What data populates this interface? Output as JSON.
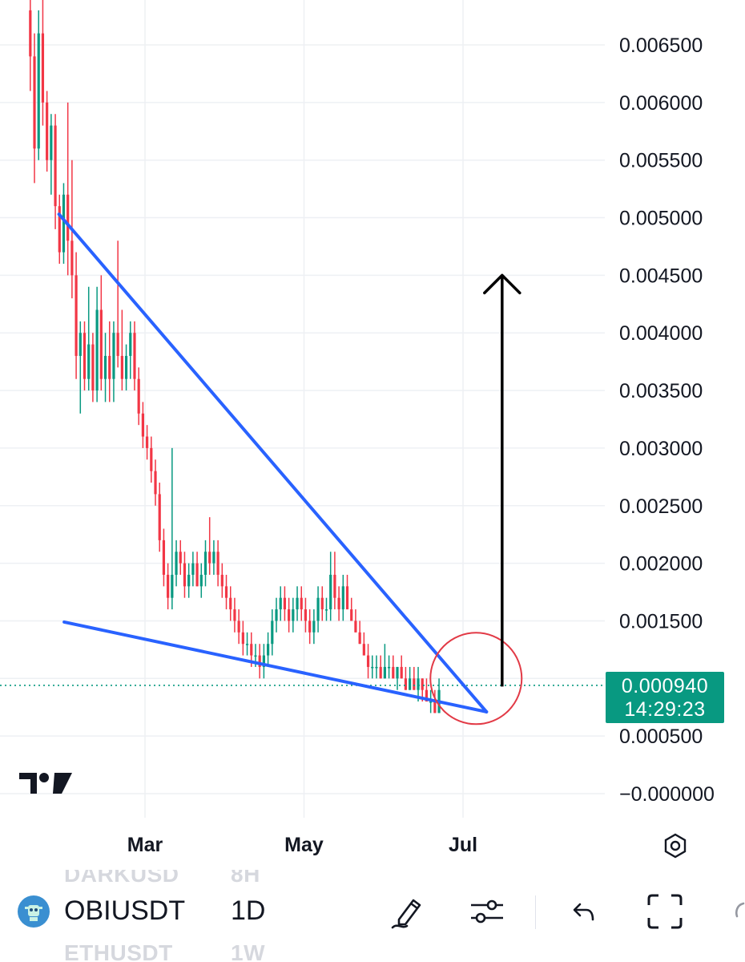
{
  "chart_data": {
    "type": "candlestick",
    "symbol": "OBIUSDT",
    "interval": "1D",
    "y_axis": {
      "ticks": [
        "0.006500",
        "0.006000",
        "0.005500",
        "0.005000",
        "0.004500",
        "0.004000",
        "0.003500",
        "0.003000",
        "0.002500",
        "0.002000",
        "0.001500",
        "0.000500",
        "−0.000000"
      ],
      "tick_values": [
        0.0065,
        0.006,
        0.0055,
        0.005,
        0.0045,
        0.004,
        0.0035,
        0.003,
        0.0025,
        0.002,
        0.0015,
        0.0005,
        0.0
      ],
      "range": [
        -0.0002,
        0.0069
      ]
    },
    "x_axis": {
      "ticks": [
        "Mar",
        "May",
        "Jul"
      ]
    },
    "grid": true,
    "last_price": "0.000940",
    "countdown": "14:29:23",
    "last_price_value": 0.00094,
    "up_color": "#089981",
    "down_color": "#f23645",
    "trendline_color": "#2962ff",
    "annotations": [
      {
        "type": "upper-trendline",
        "from": {
          "date": "Jan 27",
          "price": 0.00503
        },
        "to": {
          "date": "Jul 10",
          "price": 0.00071
        }
      },
      {
        "type": "lower-trendline",
        "from": {
          "date": "Jan 29",
          "price": 0.00149
        },
        "to": {
          "date": "Jul 10",
          "price": 0.00071
        }
      },
      {
        "type": "circle",
        "center": {
          "date": "Jul 06",
          "price": 0.001
        },
        "color": "#e23a46"
      },
      {
        "type": "arrow-up",
        "date": "Jul 16",
        "from": 0.00093,
        "to": 0.0045,
        "color": "#000000"
      }
    ],
    "candles_ohlc": [
      [
        0.0068,
        0.007,
        0.0061,
        0.0064
      ],
      [
        0.0064,
        0.0066,
        0.0053,
        0.0056
      ],
      [
        0.0056,
        0.0068,
        0.0055,
        0.0066
      ],
      [
        0.0066,
        0.007,
        0.0058,
        0.006
      ],
      [
        0.006,
        0.0061,
        0.0054,
        0.0055
      ],
      [
        0.0055,
        0.0059,
        0.0052,
        0.0058
      ],
      [
        0.0058,
        0.0059,
        0.0049,
        0.0051
      ],
      [
        0.0051,
        0.0052,
        0.0046,
        0.0047
      ],
      [
        0.0047,
        0.0053,
        0.0046,
        0.0052
      ],
      [
        0.0052,
        0.006,
        0.0045,
        0.0048
      ],
      [
        0.0048,
        0.0055,
        0.0043,
        0.0045
      ],
      [
        0.0045,
        0.0047,
        0.0036,
        0.0038
      ],
      [
        0.0038,
        0.0041,
        0.0033,
        0.004
      ],
      [
        0.004,
        0.0041,
        0.0035,
        0.0036
      ],
      [
        0.0036,
        0.0044,
        0.0035,
        0.0039
      ],
      [
        0.0039,
        0.004,
        0.0034,
        0.0035
      ],
      [
        0.0035,
        0.0044,
        0.0034,
        0.0042
      ],
      [
        0.0042,
        0.0045,
        0.0035,
        0.0036
      ],
      [
        0.0036,
        0.004,
        0.0034,
        0.0038
      ],
      [
        0.0038,
        0.0041,
        0.0034,
        0.0036
      ],
      [
        0.0036,
        0.0041,
        0.0034,
        0.004
      ],
      [
        0.004,
        0.0048,
        0.0037,
        0.0038
      ],
      [
        0.0038,
        0.0042,
        0.0035,
        0.0036
      ],
      [
        0.0036,
        0.0039,
        0.0035,
        0.0038
      ],
      [
        0.0038,
        0.0041,
        0.0036,
        0.004
      ],
      [
        0.004,
        0.0041,
        0.0035,
        0.0036
      ],
      [
        0.0036,
        0.0037,
        0.0032,
        0.0033
      ],
      [
        0.0033,
        0.0034,
        0.003,
        0.0031
      ],
      [
        0.0031,
        0.0032,
        0.0029,
        0.003
      ],
      [
        0.003,
        0.0031,
        0.0027,
        0.0028
      ],
      [
        0.0028,
        0.0029,
        0.0025,
        0.0026
      ],
      [
        0.0026,
        0.0027,
        0.0021,
        0.0022
      ],
      [
        0.0022,
        0.0023,
        0.0018,
        0.0019
      ],
      [
        0.0019,
        0.002,
        0.0016,
        0.0017
      ],
      [
        0.0017,
        0.003,
        0.0016,
        0.0019
      ],
      [
        0.0019,
        0.0022,
        0.0018,
        0.0021
      ],
      [
        0.0021,
        0.0022,
        0.0019,
        0.002
      ],
      [
        0.002,
        0.0021,
        0.0017,
        0.0018
      ],
      [
        0.0018,
        0.002,
        0.0017,
        0.0019
      ],
      [
        0.0019,
        0.0021,
        0.0018,
        0.002
      ],
      [
        0.002,
        0.0021,
        0.0018,
        0.0018
      ],
      [
        0.0018,
        0.002,
        0.0017,
        0.0019
      ],
      [
        0.0019,
        0.0022,
        0.0018,
        0.0021
      ],
      [
        0.0021,
        0.0024,
        0.0019,
        0.002
      ],
      [
        0.002,
        0.0022,
        0.0019,
        0.0021
      ],
      [
        0.0021,
        0.0022,
        0.0018,
        0.0019
      ],
      [
        0.0019,
        0.002,
        0.0017,
        0.0018
      ],
      [
        0.0018,
        0.0019,
        0.0016,
        0.0017
      ],
      [
        0.0017,
        0.0018,
        0.0015,
        0.0016
      ],
      [
        0.0016,
        0.0017,
        0.0014,
        0.0015
      ],
      [
        0.0015,
        0.0016,
        0.0013,
        0.0014
      ],
      [
        0.0014,
        0.0015,
        0.0012,
        0.0013
      ],
      [
        0.0013,
        0.0014,
        0.0012,
        0.0013
      ],
      [
        0.0013,
        0.0014,
        0.0011,
        0.0012
      ],
      [
        0.0012,
        0.0013,
        0.0011,
        0.0012
      ],
      [
        0.0012,
        0.0013,
        0.001,
        0.0011
      ],
      [
        0.0011,
        0.0013,
        0.001,
        0.0012
      ],
      [
        0.0012,
        0.0014,
        0.0011,
        0.0013
      ],
      [
        0.0013,
        0.0016,
        0.0012,
        0.0015
      ],
      [
        0.0015,
        0.0017,
        0.0014,
        0.0016
      ],
      [
        0.0016,
        0.0018,
        0.0015,
        0.0017
      ],
      [
        0.0017,
        0.0018,
        0.0015,
        0.0016
      ],
      [
        0.0016,
        0.0017,
        0.0014,
        0.0015
      ],
      [
        0.0015,
        0.0017,
        0.0014,
        0.0016
      ],
      [
        0.0016,
        0.0018,
        0.0015,
        0.0017
      ],
      [
        0.0017,
        0.0018,
        0.0015,
        0.0016
      ],
      [
        0.0016,
        0.0017,
        0.0014,
        0.0015
      ],
      [
        0.0015,
        0.0016,
        0.0013,
        0.0014
      ],
      [
        0.0014,
        0.0016,
        0.0013,
        0.0015
      ],
      [
        0.0015,
        0.0018,
        0.0014,
        0.0017
      ],
      [
        0.0017,
        0.0018,
        0.0015,
        0.0016
      ],
      [
        0.0016,
        0.0017,
        0.0015,
        0.0016
      ],
      [
        0.0016,
        0.0021,
        0.0015,
        0.0019
      ],
      [
        0.0019,
        0.0021,
        0.0016,
        0.0017
      ],
      [
        0.0017,
        0.0018,
        0.0015,
        0.0016
      ],
      [
        0.0016,
        0.0019,
        0.0015,
        0.0018
      ],
      [
        0.0018,
        0.0019,
        0.0016,
        0.0016
      ],
      [
        0.0016,
        0.0017,
        0.0015,
        0.0015
      ],
      [
        0.0015,
        0.0016,
        0.0014,
        0.0014
      ],
      [
        0.0014,
        0.0015,
        0.0013,
        0.0013
      ],
      [
        0.0013,
        0.0014,
        0.0012,
        0.0012
      ],
      [
        0.0012,
        0.0013,
        0.001,
        0.0011
      ],
      [
        0.0011,
        0.0012,
        0.001,
        0.0011
      ],
      [
        0.0011,
        0.0012,
        0.001,
        0.0011
      ],
      [
        0.0011,
        0.0012,
        0.001,
        0.001
      ],
      [
        0.001,
        0.0013,
        0.001,
        0.0011
      ],
      [
        0.0011,
        0.0012,
        0.001,
        0.0011
      ],
      [
        0.0011,
        0.0012,
        0.001,
        0.001
      ],
      [
        0.001,
        0.0011,
        0.0009,
        0.0011
      ],
      [
        0.0011,
        0.0012,
        0.001,
        0.001
      ],
      [
        0.001,
        0.0011,
        0.0009,
        0.0009
      ],
      [
        0.0009,
        0.0011,
        0.0009,
        0.001
      ],
      [
        0.001,
        0.0011,
        0.0009,
        0.0009
      ],
      [
        0.0009,
        0.0011,
        0.0008,
        0.001
      ],
      [
        0.001,
        0.001,
        0.0008,
        0.0009
      ],
      [
        0.0009,
        0.001,
        0.0008,
        0.0008
      ],
      [
        0.0008,
        0.0009,
        0.0007,
        0.0008
      ],
      [
        0.0008,
        0.0009,
        0.0007,
        0.0007
      ],
      [
        0.0007,
        0.001,
        0.0007,
        0.0009
      ]
    ]
  },
  "toolbar": {
    "symbol": "OBIUSDT",
    "interval": "1D",
    "ghost_above_symbol": "DARKUSD",
    "ghost_above_interval": "8H",
    "ghost_below_symbol": "ETHUSDT",
    "ghost_below_interval": "1W",
    "icons": [
      "draw-pen-icon",
      "indicators-sliders-icon",
      "undo-icon",
      "fullscreen-icon"
    ]
  },
  "logo": "TradingView"
}
